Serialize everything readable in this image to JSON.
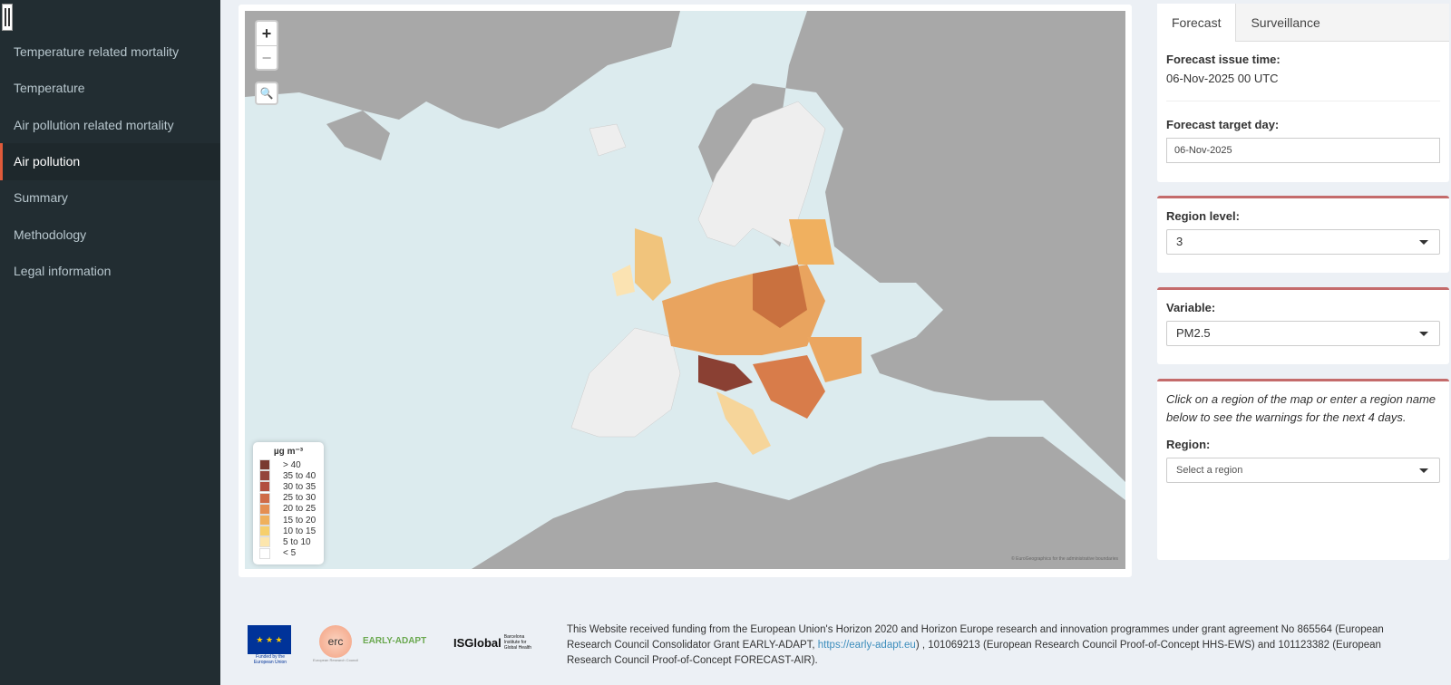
{
  "sidebar": {
    "items": [
      {
        "label": "Temperature related mortality",
        "active": false
      },
      {
        "label": "Temperature",
        "active": false
      },
      {
        "label": "Air pollution related mortality",
        "active": false
      },
      {
        "label": "Air pollution",
        "active": true
      },
      {
        "label": "Summary",
        "active": false
      },
      {
        "label": "Methodology",
        "active": false
      },
      {
        "label": "Legal information",
        "active": false
      }
    ]
  },
  "map": {
    "zoom_in": "+",
    "zoom_out": "−",
    "search_icon": "magnifier-icon",
    "legend": {
      "title": "µg m⁻³",
      "items": [
        {
          "label": "> 40",
          "color": "#7a3a30"
        },
        {
          "label": "35 to 40",
          "color": "#94443a"
        },
        {
          "label": "30 to 35",
          "color": "#b24e3e"
        },
        {
          "label": "25 to 30",
          "color": "#cf6b48"
        },
        {
          "label": "20 to 25",
          "color": "#e48e52"
        },
        {
          "label": "15 to 20",
          "color": "#efb05c"
        },
        {
          "label": "10 to 15",
          "color": "#f6cf6c"
        },
        {
          "label": "5 to 10",
          "color": "#fde6ad"
        },
        {
          "label": "< 5",
          "color": "#ffffff"
        }
      ]
    },
    "attribution": "© EuroGeographics for the administrative boundaries"
  },
  "panel": {
    "tabs": [
      "Forecast",
      "Surveillance"
    ],
    "issue_label": "Forecast issue time:",
    "issue_value": "06-Nov-2025 00 UTC",
    "target_label": "Forecast target day:",
    "target_value": "06-Nov-2025",
    "region_level_label": "Region level:",
    "region_level_value": "3",
    "variable_label": "Variable:",
    "variable_value": "PM2.5",
    "instructions": "Click on a region of the map or enter a region name below to see the warnings for the next 4 days.",
    "region_label": "Region:",
    "region_placeholder": "Select a region"
  },
  "footer": {
    "text_before": "This Website received funding from the European Union's Horizon 2020 and Horizon Europe research and innovation programmes under grant agreement No 865564 (European Research Council Consolidator Grant EARLY-ADAPT, ",
    "link": "https://early-adapt.eu",
    "text_after": ") , 101069213 (European Research Council Proof-of-Concept HHS-EWS) and 101123382 (European Research Council Proof-of-Concept FORECAST-AIR).",
    "logos": {
      "eu": "Funded by the European Union",
      "erc": "erc",
      "erc_sub": "European Research Council",
      "early": "EARLY-ADAPT",
      "isglobal": "ISGlobal",
      "isglobal_sub": "Barcelona Institute for Global Health"
    }
  }
}
